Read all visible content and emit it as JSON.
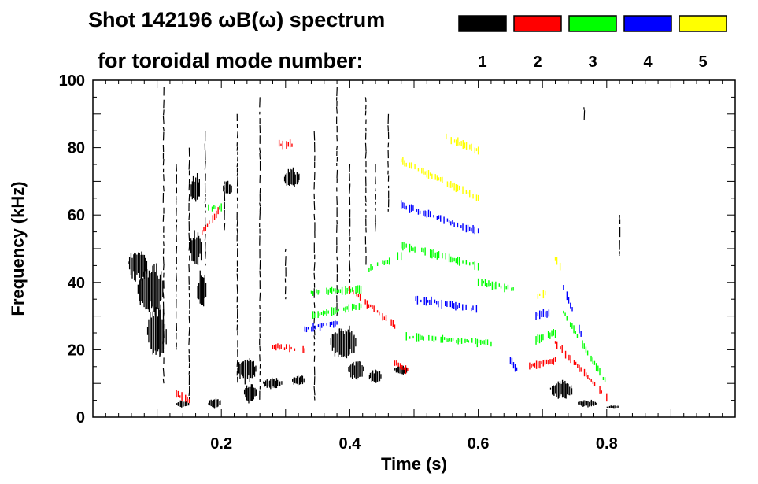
{
  "chart_data": {
    "type": "scatter",
    "title_line1": "Shot 142196 ωB(ω) spectrum",
    "title_line2": "for toroidal mode number:",
    "xlabel": "Time (s)",
    "ylabel": "Frequency (kHz)",
    "xlim": [
      0.0,
      1.0
    ],
    "ylim": [
      0,
      100
    ],
    "x_ticks": [
      0.2,
      0.4,
      0.6,
      0.8
    ],
    "y_ticks": [
      0,
      20,
      40,
      60,
      80,
      100
    ],
    "grid": false,
    "legend": {
      "placement": "top-right",
      "entries": [
        {
          "label": "1",
          "color": "#000000"
        },
        {
          "label": "2",
          "color": "#ff0000"
        },
        {
          "label": "3",
          "color": "#00ff00"
        },
        {
          "label": "4",
          "color": "#0000ff"
        },
        {
          "label": "5",
          "color": "#ffff00"
        }
      ]
    },
    "series": [
      {
        "name": "1",
        "color": "#000000",
        "blobs": [
          {
            "t": 0.07,
            "f": 45,
            "dt": 0.03,
            "df": 9
          },
          {
            "t": 0.09,
            "f": 38,
            "dt": 0.04,
            "df": 14
          },
          {
            "t": 0.1,
            "f": 25,
            "dt": 0.03,
            "df": 15
          },
          {
            "t": 0.14,
            "f": 4,
            "dt": 0.02,
            "df": 2
          },
          {
            "t": 0.16,
            "f": 68,
            "dt": 0.015,
            "df": 8
          },
          {
            "t": 0.16,
            "f": 50,
            "dt": 0.02,
            "df": 10
          },
          {
            "t": 0.17,
            "f": 38,
            "dt": 0.015,
            "df": 10
          },
          {
            "t": 0.19,
            "f": 4,
            "dt": 0.02,
            "df": 3
          },
          {
            "t": 0.21,
            "f": 68,
            "dt": 0.015,
            "df": 4
          },
          {
            "t": 0.24,
            "f": 14,
            "dt": 0.03,
            "df": 7
          },
          {
            "t": 0.245,
            "f": 7,
            "dt": 0.02,
            "df": 5
          },
          {
            "t": 0.28,
            "f": 10,
            "dt": 0.03,
            "df": 3
          },
          {
            "t": 0.31,
            "f": 71,
            "dt": 0.025,
            "df": 5
          },
          {
            "t": 0.32,
            "f": 11,
            "dt": 0.02,
            "df": 3
          },
          {
            "t": 0.39,
            "f": 22,
            "dt": 0.04,
            "df": 9
          },
          {
            "t": 0.41,
            "f": 14,
            "dt": 0.025,
            "df": 5
          },
          {
            "t": 0.44,
            "f": 12,
            "dt": 0.02,
            "df": 4
          },
          {
            "t": 0.48,
            "f": 14,
            "dt": 0.02,
            "df": 3
          },
          {
            "t": 0.73,
            "f": 8,
            "dt": 0.035,
            "df": 5
          },
          {
            "t": 0.77,
            "f": 4,
            "dt": 0.03,
            "df": 2
          },
          {
            "t": 0.81,
            "f": 3,
            "dt": 0.02,
            "df": 1
          }
        ],
        "strokes": [
          {
            "t": 0.11,
            "f0": 10,
            "f1": 98
          },
          {
            "t": 0.13,
            "f0": 20,
            "f1": 75
          },
          {
            "t": 0.15,
            "f0": 5,
            "f1": 80
          },
          {
            "t": 0.175,
            "f0": 45,
            "f1": 85
          },
          {
            "t": 0.205,
            "f0": 55,
            "f1": 70
          },
          {
            "t": 0.225,
            "f0": 10,
            "f1": 90
          },
          {
            "t": 0.26,
            "f0": 5,
            "f1": 95
          },
          {
            "t": 0.3,
            "f0": 35,
            "f1": 50
          },
          {
            "t": 0.345,
            "f0": 5,
            "f1": 85
          },
          {
            "t": 0.38,
            "f0": 30,
            "f1": 98
          },
          {
            "t": 0.4,
            "f0": 40,
            "f1": 75
          },
          {
            "t": 0.425,
            "f0": 45,
            "f1": 95
          },
          {
            "t": 0.44,
            "f0": 55,
            "f1": 75
          },
          {
            "t": 0.46,
            "f0": 60,
            "f1": 90
          },
          {
            "t": 0.765,
            "f0": 88,
            "f1": 92
          },
          {
            "t": 0.82,
            "f0": 48,
            "f1": 60
          }
        ]
      },
      {
        "name": "2",
        "color": "#ff0000",
        "tracks": [
          {
            "t0": 0.17,
            "f0": 55,
            "t1": 0.195,
            "f1": 61
          },
          {
            "t0": 0.29,
            "f0": 81,
            "t1": 0.31,
            "f1": 81
          },
          {
            "t0": 0.28,
            "f0": 21,
            "t1": 0.33,
            "f1": 20
          },
          {
            "t0": 0.4,
            "f0": 38,
            "t1": 0.47,
            "f1": 27
          },
          {
            "t0": 0.47,
            "f0": 16,
            "t1": 0.49,
            "f1": 14
          },
          {
            "t0": 0.68,
            "f0": 15,
            "t1": 0.72,
            "f1": 17
          },
          {
            "t0": 0.72,
            "f0": 22,
            "t1": 0.8,
            "f1": 6
          },
          {
            "t0": 0.13,
            "f0": 7,
            "t1": 0.15,
            "f1": 5
          }
        ]
      },
      {
        "name": "3",
        "color": "#00ff00",
        "tracks": [
          {
            "t0": 0.18,
            "f0": 62,
            "t1": 0.2,
            "f1": 62
          },
          {
            "t0": 0.34,
            "f0": 37,
            "t1": 0.42,
            "f1": 38
          },
          {
            "t0": 0.34,
            "f0": 30,
            "t1": 0.42,
            "f1": 33
          },
          {
            "t0": 0.48,
            "f0": 51,
            "t1": 0.6,
            "f1": 45
          },
          {
            "t0": 0.43,
            "f0": 44,
            "t1": 0.48,
            "f1": 48
          },
          {
            "t0": 0.48,
            "f0": 24,
            "t1": 0.62,
            "f1": 22
          },
          {
            "t0": 0.6,
            "f0": 40,
            "t1": 0.66,
            "f1": 38
          },
          {
            "t0": 0.69,
            "f0": 23,
            "t1": 0.72,
            "f1": 25
          },
          {
            "t0": 0.73,
            "f0": 32,
            "t1": 0.8,
            "f1": 10
          }
        ]
      },
      {
        "name": "4",
        "color": "#0000ff",
        "tracks": [
          {
            "t0": 0.48,
            "f0": 63,
            "t1": 0.6,
            "f1": 55
          },
          {
            "t0": 0.33,
            "f0": 26,
            "t1": 0.38,
            "f1": 28
          },
          {
            "t0": 0.5,
            "f0": 35,
            "t1": 0.6,
            "f1": 32
          },
          {
            "t0": 0.69,
            "f0": 30,
            "t1": 0.71,
            "f1": 31
          },
          {
            "t0": 0.73,
            "f0": 40,
            "t1": 0.76,
            "f1": 25
          },
          {
            "t0": 0.65,
            "f0": 17,
            "t1": 0.66,
            "f1": 14
          }
        ]
      },
      {
        "name": "5",
        "color": "#ffff00",
        "tracks": [
          {
            "t0": 0.48,
            "f0": 76,
            "t1": 0.6,
            "f1": 65
          },
          {
            "t0": 0.55,
            "f0": 83,
            "t1": 0.6,
            "f1": 79
          },
          {
            "t0": 0.72,
            "f0": 47,
            "t1": 0.73,
            "f1": 44
          },
          {
            "t0": 0.69,
            "f0": 36,
            "t1": 0.71,
            "f1": 37
          }
        ]
      }
    ]
  }
}
